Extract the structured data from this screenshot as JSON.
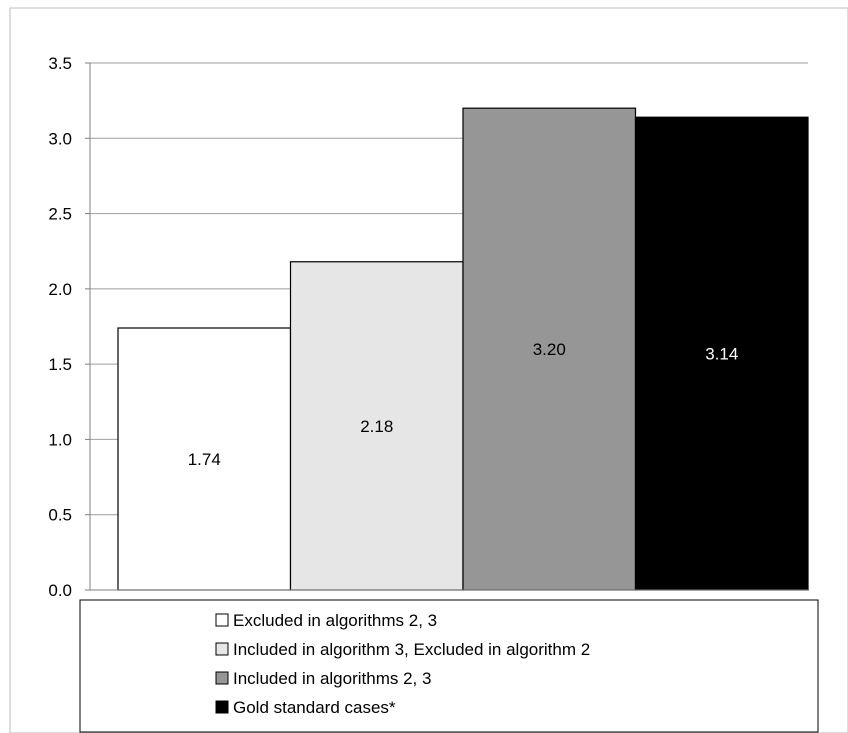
{
  "chart_data": {
    "type": "bar",
    "categories": [
      "Excluded in algorithms 2, 3",
      "Included in algorithm 3, Excluded in  algorithm 2",
      "Included in algorithms 2, 3",
      "Gold standard cases*"
    ],
    "values": [
      1.74,
      2.18,
      3.2,
      3.14
    ],
    "value_labels": [
      "1.74",
      "2.18",
      "3.20",
      "3.14"
    ],
    "colors": [
      "#ffffff",
      "#e6e6e6",
      "#969696",
      "#000000"
    ],
    "label_colors": [
      "#000000",
      "#000000",
      "#000000",
      "#ffffff"
    ],
    "title": "",
    "xlabel": "",
    "ylabel": "",
    "ylim": [
      0,
      3.5
    ],
    "yticks": [
      "0.0",
      "0.5",
      "1.0",
      "1.5",
      "2.0",
      "2.5",
      "3.0",
      "3.5"
    ],
    "grid": true,
    "legend_position": "bottom"
  }
}
